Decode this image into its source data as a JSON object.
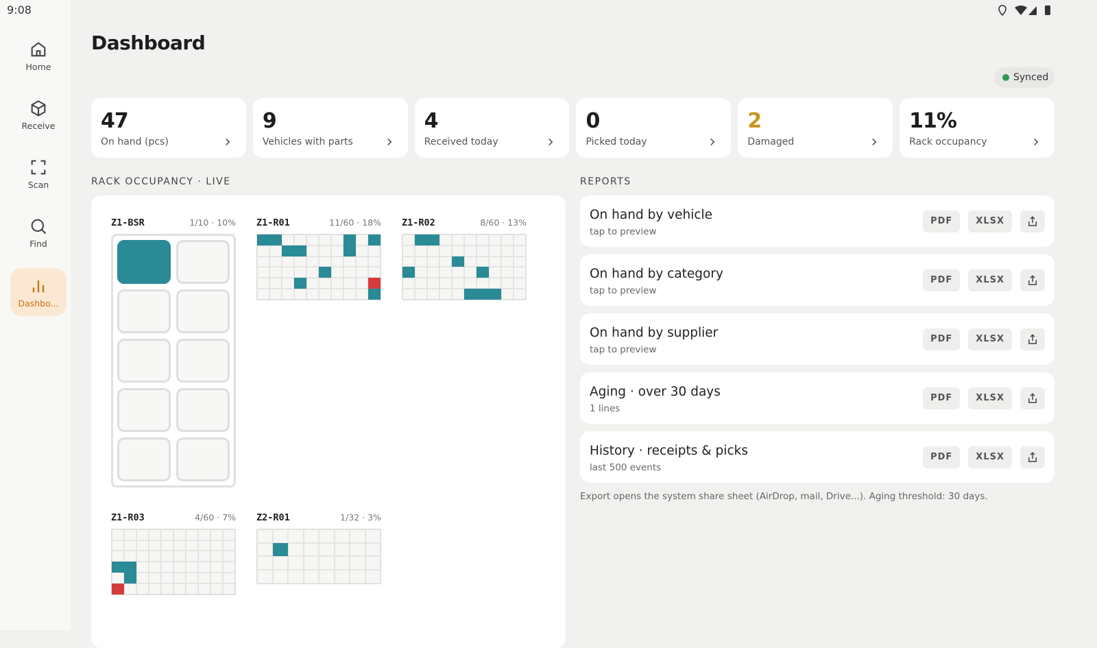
{
  "status_bar": {
    "time": "9:08"
  },
  "nav": [
    {
      "label": "Home"
    },
    {
      "label": "Receive"
    },
    {
      "label": "Scan"
    },
    {
      "label": "Find"
    },
    {
      "label": "Dashbo...",
      "active": true
    }
  ],
  "header": {
    "title": "Dashboard",
    "sync_status": "Synced"
  },
  "stats": [
    {
      "value": 47,
      "label": "On hand (pcs)"
    },
    {
      "value": 9,
      "label": "Vehicles with parts"
    },
    {
      "value": 4,
      "label": "Received today"
    },
    {
      "value": 0,
      "label": "Picked today"
    },
    {
      "value": 2,
      "label": "Damaged",
      "color": "#c8961e"
    },
    {
      "value": "11%",
      "label": "Rack occupancy"
    }
  ],
  "racks": {
    "title": "RACK OCCUPANCY · LIVE",
    "items": [
      {
        "name": "Z1-BSR",
        "summary": "1/10 · 10%",
        "cols": 2,
        "rows": 5,
        "occupied": [
          0
        ],
        "damaged": []
      },
      {
        "name": "Z1-R01",
        "summary": "11/60 · 18%",
        "cols": 10,
        "rows": 6,
        "occupied": [
          0,
          1,
          7,
          9,
          12,
          13,
          17,
          35,
          43,
          59
        ],
        "damaged": [
          49
        ]
      },
      {
        "name": "Z1-R02",
        "summary": "8/60 · 13%",
        "cols": 10,
        "rows": 6,
        "occupied": [
          1,
          2,
          24,
          30,
          36,
          55,
          56,
          57
        ],
        "damaged": []
      },
      {
        "name": "Z1-R03",
        "summary": "4/60 · 7%",
        "cols": 10,
        "rows": 6,
        "occupied": [
          30,
          31,
          41
        ],
        "damaged": [
          50
        ]
      },
      {
        "name": "Z2-R01",
        "summary": "1/32 · 3%",
        "cols": 8,
        "rows": 4,
        "occupied": [
          9
        ],
        "damaged": []
      }
    ]
  },
  "reports": {
    "title": "REPORTS",
    "items": [
      {
        "title": "On hand by vehicle",
        "subtitle": "tap to preview",
        "actions": [
          "PDF",
          "XLSX"
        ]
      },
      {
        "title": "On hand by category",
        "subtitle": "tap to preview",
        "actions": [
          "PDF",
          "XLSX"
        ]
      },
      {
        "title": "On hand by supplier",
        "subtitle": "tap to preview",
        "actions": [
          "PDF",
          "XLSX"
        ]
      },
      {
        "title": "Aging · over 30 days",
        "subtitle": "1 lines",
        "actions": [
          "PDF",
          "XLSX"
        ]
      },
      {
        "title": "History · receipts & picks",
        "subtitle": "last 500 events",
        "actions": [
          "PDF",
          "XLSX"
        ]
      }
    ],
    "note": "Export opens the system share sheet (AirDrop, mail, Drive...). Aging threshold: 30 days."
  }
}
